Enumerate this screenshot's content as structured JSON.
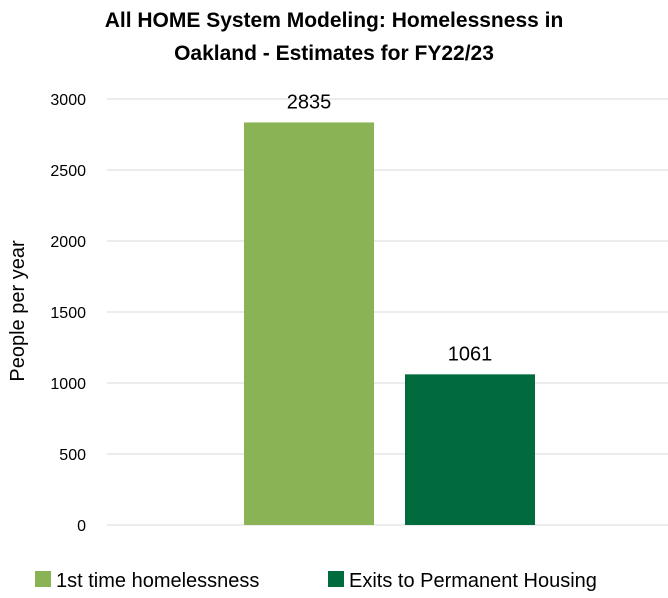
{
  "chart_data": {
    "type": "bar",
    "title_lines": [
      "All HOME System Modeling: Homelessness in",
      "Oakland - Estimates for FY22/23"
    ],
    "xlabel": "",
    "ylabel": "People per year",
    "ylim": [
      0,
      3000
    ],
    "yticks": [
      "0",
      "500",
      "1000",
      "1500",
      "2000",
      "2500",
      "3000"
    ],
    "grid": true,
    "legend_position": "bottom",
    "series": [
      {
        "name": "1st time homelessness",
        "value": 2835,
        "label": "2835",
        "color": "#8ab356"
      },
      {
        "name": "Exits to Permanent Housing",
        "value": 1061,
        "label": "1061",
        "color": "#006b3c"
      }
    ]
  }
}
